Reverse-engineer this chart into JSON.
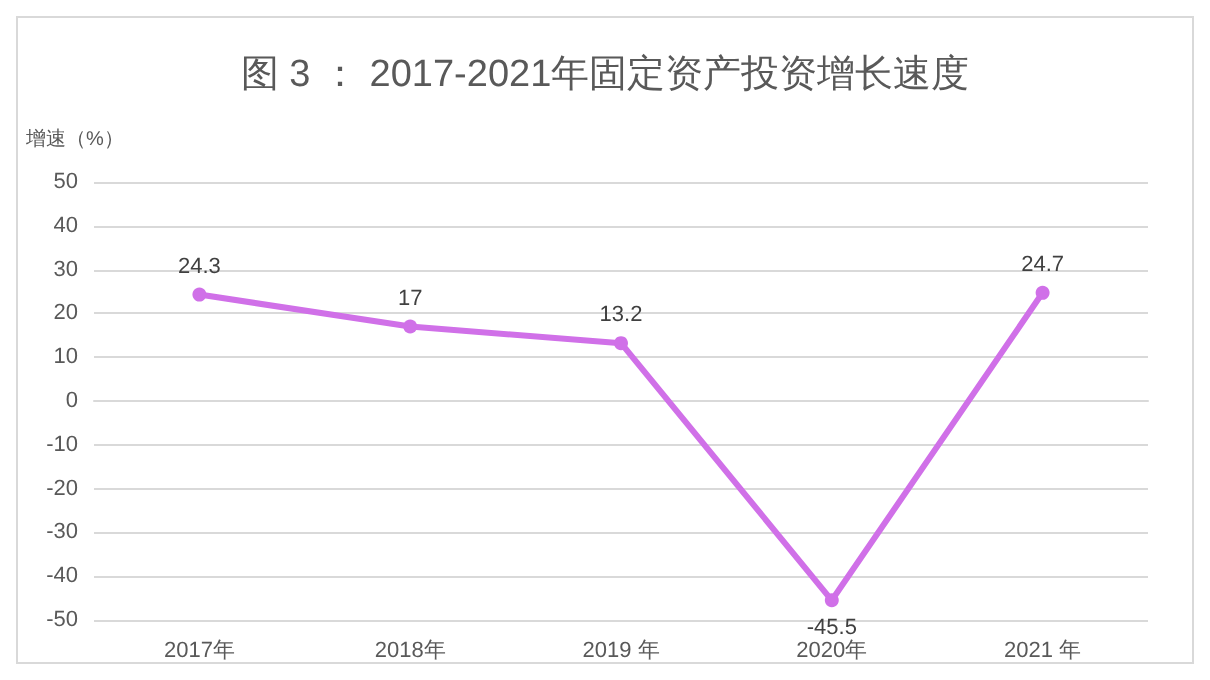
{
  "chart_data": {
    "type": "line",
    "title": "图 3 ： 2017-2021年固定资产投资增长速度",
    "ylabel": "增速（%）",
    "categories": [
      "2017年",
      "2018年",
      "2019 年",
      "2020年",
      "2021 年"
    ],
    "series": [
      {
        "color": "#d070e8",
        "values": [
          24.3,
          17,
          13.2,
          -45.5,
          24.7
        ]
      }
    ],
    "ylim": [
      -50,
      50
    ],
    "yticks": [
      -50,
      -40,
      -30,
      -20,
      -10,
      0,
      10,
      20,
      30,
      40,
      50
    ],
    "grid": "y",
    "marker": "circle",
    "line_style": "solid",
    "data_labels": true
  }
}
